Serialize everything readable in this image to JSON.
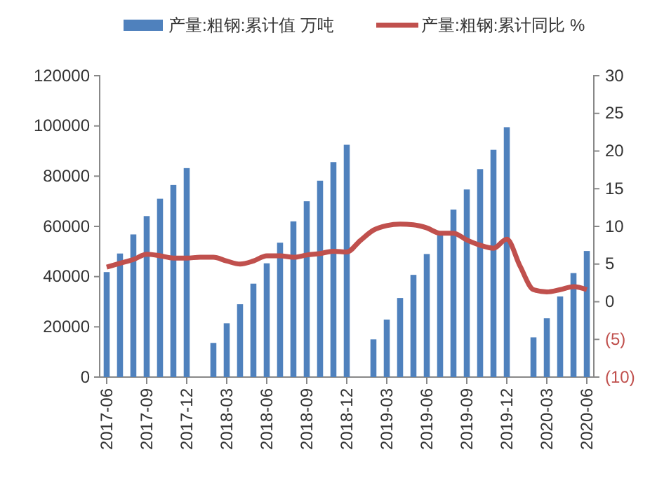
{
  "chart_data": {
    "type": "bar",
    "categories": [
      "2017-06",
      null,
      null,
      "2017-09",
      null,
      null,
      "2017-12",
      null,
      null,
      "2018-03",
      null,
      null,
      "2018-06",
      null,
      null,
      "2018-09",
      null,
      null,
      "2018-12",
      null,
      null,
      "2019-03",
      null,
      null,
      "2019-06",
      null,
      null,
      "2019-09",
      null,
      null,
      "2019-12",
      null,
      null,
      "2020-03",
      null,
      null,
      "2020-06"
    ],
    "series": [
      {
        "name": "产量:粗钢:累计值 万吨",
        "color": "#4f81bd",
        "values": [
          41800,
          49200,
          56800,
          64100,
          71000,
          76500,
          83200,
          null,
          13600,
          21400,
          29000,
          37200,
          45300,
          53500,
          62000,
          70000,
          78200,
          85600,
          92500,
          null,
          15000,
          22900,
          31500,
          40700,
          49000,
          57500,
          66700,
          74700,
          82800,
          90500,
          99500,
          null,
          15800,
          23400,
          32100,
          41400,
          50200
        ]
      },
      {
        "name": "产量:粗钢:累计同比 %",
        "type": "line",
        "axis": "y2",
        "color": "#c0504d",
        "values": [
          4.6,
          5.1,
          5.6,
          6.3,
          6.1,
          5.8,
          5.8,
          5.9,
          5.9,
          5.4,
          5.0,
          5.4,
          6.1,
          6.1,
          5.9,
          6.2,
          6.4,
          6.7,
          6.6,
          8.1,
          9.5,
          10.1,
          10.3,
          10.2,
          9.8,
          9.1,
          9.1,
          8.2,
          7.5,
          7.1,
          8.3,
          4.7,
          1.6,
          1.3,
          1.6,
          2.0,
          1.6
        ]
      }
    ],
    "ylim": [
      0,
      120000
    ],
    "yticks": [
      0,
      20000,
      40000,
      60000,
      80000,
      100000,
      120000
    ],
    "y2lim": [
      -10,
      30
    ],
    "y2ticks": [
      {
        "value": -10,
        "label": "(10)"
      },
      {
        "value": -5,
        "label": "(5)"
      },
      0,
      5,
      10,
      15,
      20,
      25,
      30
    ],
    "legend": "top",
    "grid": false,
    "line_style": "solid",
    "marker": "none"
  }
}
